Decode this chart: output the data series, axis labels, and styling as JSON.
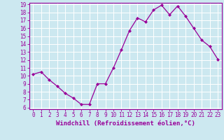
{
  "x": [
    0,
    1,
    2,
    3,
    4,
    5,
    6,
    7,
    8,
    9,
    10,
    11,
    12,
    13,
    14,
    15,
    16,
    17,
    18,
    19,
    20,
    21,
    22,
    23
  ],
  "y": [
    10.2,
    10.5,
    9.5,
    8.7,
    7.8,
    7.2,
    6.4,
    6.4,
    9.0,
    9.0,
    11.0,
    13.3,
    15.7,
    17.3,
    16.8,
    18.3,
    18.9,
    17.7,
    18.8,
    17.5,
    16.0,
    14.5,
    13.7,
    12.1
  ],
  "line_color": "#990099",
  "marker": "D",
  "marker_size": 2,
  "bg_color": "#cce8f0",
  "grid_color": "#ffffff",
  "xlabel": "Windchill (Refroidissement éolien,°C)",
  "xlabel_color": "#990099",
  "tick_color": "#990099",
  "ylim": [
    6,
    19
  ],
  "xlim": [
    -0.5,
    23.5
  ],
  "yticks": [
    6,
    7,
    8,
    9,
    10,
    11,
    12,
    13,
    14,
    15,
    16,
    17,
    18,
    19
  ],
  "xticks": [
    0,
    1,
    2,
    3,
    4,
    5,
    6,
    7,
    8,
    9,
    10,
    11,
    12,
    13,
    14,
    15,
    16,
    17,
    18,
    19,
    20,
    21,
    22,
    23
  ],
  "spine_color": "#990099",
  "label_fontsize": 6.5,
  "tick_fontsize": 5.5
}
